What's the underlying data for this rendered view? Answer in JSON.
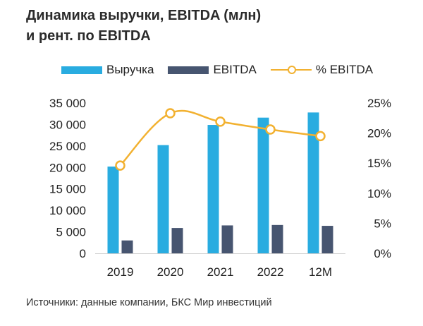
{
  "title_lines": [
    "Динамика выручки, EBITDA (млн)",
    "и рент. по EBITDA"
  ],
  "source": "Источники: данные компании, БКС Мир инвестиций",
  "colors": {
    "revenue": "#29ACE0",
    "ebitda": "#475570",
    "margin": "#F2B130",
    "grid": "#e6e6e6"
  },
  "chart_data": {
    "type": "bar",
    "title": "Динамика выручки, EBITDA (млн) и рент. по EBITDA",
    "categories": [
      "2019",
      "2020",
      "2021",
      "2022",
      "12M"
    ],
    "series": [
      {
        "name": "Выручка",
        "type": "bar",
        "axis": "left",
        "values": [
          20200,
          25200,
          29900,
          31600,
          32800
        ]
      },
      {
        "name": "EBITDA",
        "type": "bar",
        "axis": "left",
        "values": [
          3000,
          5900,
          6500,
          6600,
          6400
        ]
      },
      {
        "name": "% EBITDA",
        "type": "line",
        "axis": "right",
        "values": [
          14.6,
          23.3,
          21.9,
          20.6,
          19.5
        ]
      }
    ],
    "ylim_left": [
      0,
      35000
    ],
    "yticks_left": [
      0,
      5000,
      10000,
      15000,
      20000,
      25000,
      30000,
      35000
    ],
    "ytick_labels_left": [
      "0",
      "5 000",
      "10 000",
      "15 000",
      "20 000",
      "25 000",
      "30 000",
      "35 000"
    ],
    "ylim_right": [
      0,
      25
    ],
    "yticks_right": [
      0,
      5,
      10,
      15,
      20,
      25
    ],
    "ytick_labels_right": [
      "0%",
      "5%",
      "10%",
      "15%",
      "20%",
      "25%"
    ],
    "legend_position": "top",
    "grid": false
  }
}
